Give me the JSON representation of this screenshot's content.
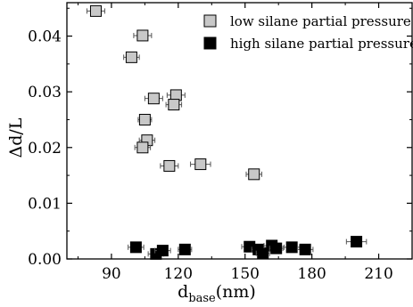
{
  "chart_data": {
    "type": "scatter",
    "xlabel_main": "d",
    "xlabel_sub": "base",
    "xlabel_unit": "(nm)",
    "ylabel": "Δd/L",
    "xlim": [
      70,
      225
    ],
    "ylim": [
      0,
      0.046
    ],
    "xticks": [
      90,
      120,
      150,
      180,
      210
    ],
    "xtick_labels": [
      "90",
      "120",
      "150",
      "180",
      "210"
    ],
    "yticks": [
      0.0,
      0.01,
      0.02,
      0.03,
      0.04
    ],
    "ytick_labels": [
      "0.00",
      "0.01",
      "0.02",
      "0.03",
      "0.04"
    ],
    "legend_position": "top-right",
    "series": [
      {
        "name": "low silane partial pressure",
        "color": "#c8c8c8",
        "x": [
          83,
          104,
          99,
          119,
          109,
          118,
          105,
          106,
          104,
          116,
          130,
          154
        ],
        "y": [
          0.0445,
          0.0401,
          0.0362,
          0.0294,
          0.0288,
          0.0277,
          0.025,
          0.0213,
          0.02,
          0.0167,
          0.017,
          0.0152
        ],
        "xerr": [
          4,
          4,
          3.5,
          4,
          4,
          3.5,
          3,
          3.5,
          3.5,
          4,
          4.5,
          3.5
        ]
      },
      {
        "name": "high silane partial pressure",
        "color": "#000000",
        "x": [
          101,
          110,
          113,
          123,
          152,
          156,
          158,
          162,
          164,
          171,
          177,
          200
        ],
        "y": [
          0.0021,
          0.0009,
          0.0015,
          0.0017,
          0.0022,
          0.0017,
          0.001,
          0.0024,
          0.0019,
          0.0021,
          0.0017,
          0.0031
        ],
        "xerr": [
          3.5,
          3.5,
          3.5,
          3,
          3.5,
          3,
          3,
          3.5,
          3,
          3.5,
          3.5,
          4.5
        ]
      }
    ]
  }
}
